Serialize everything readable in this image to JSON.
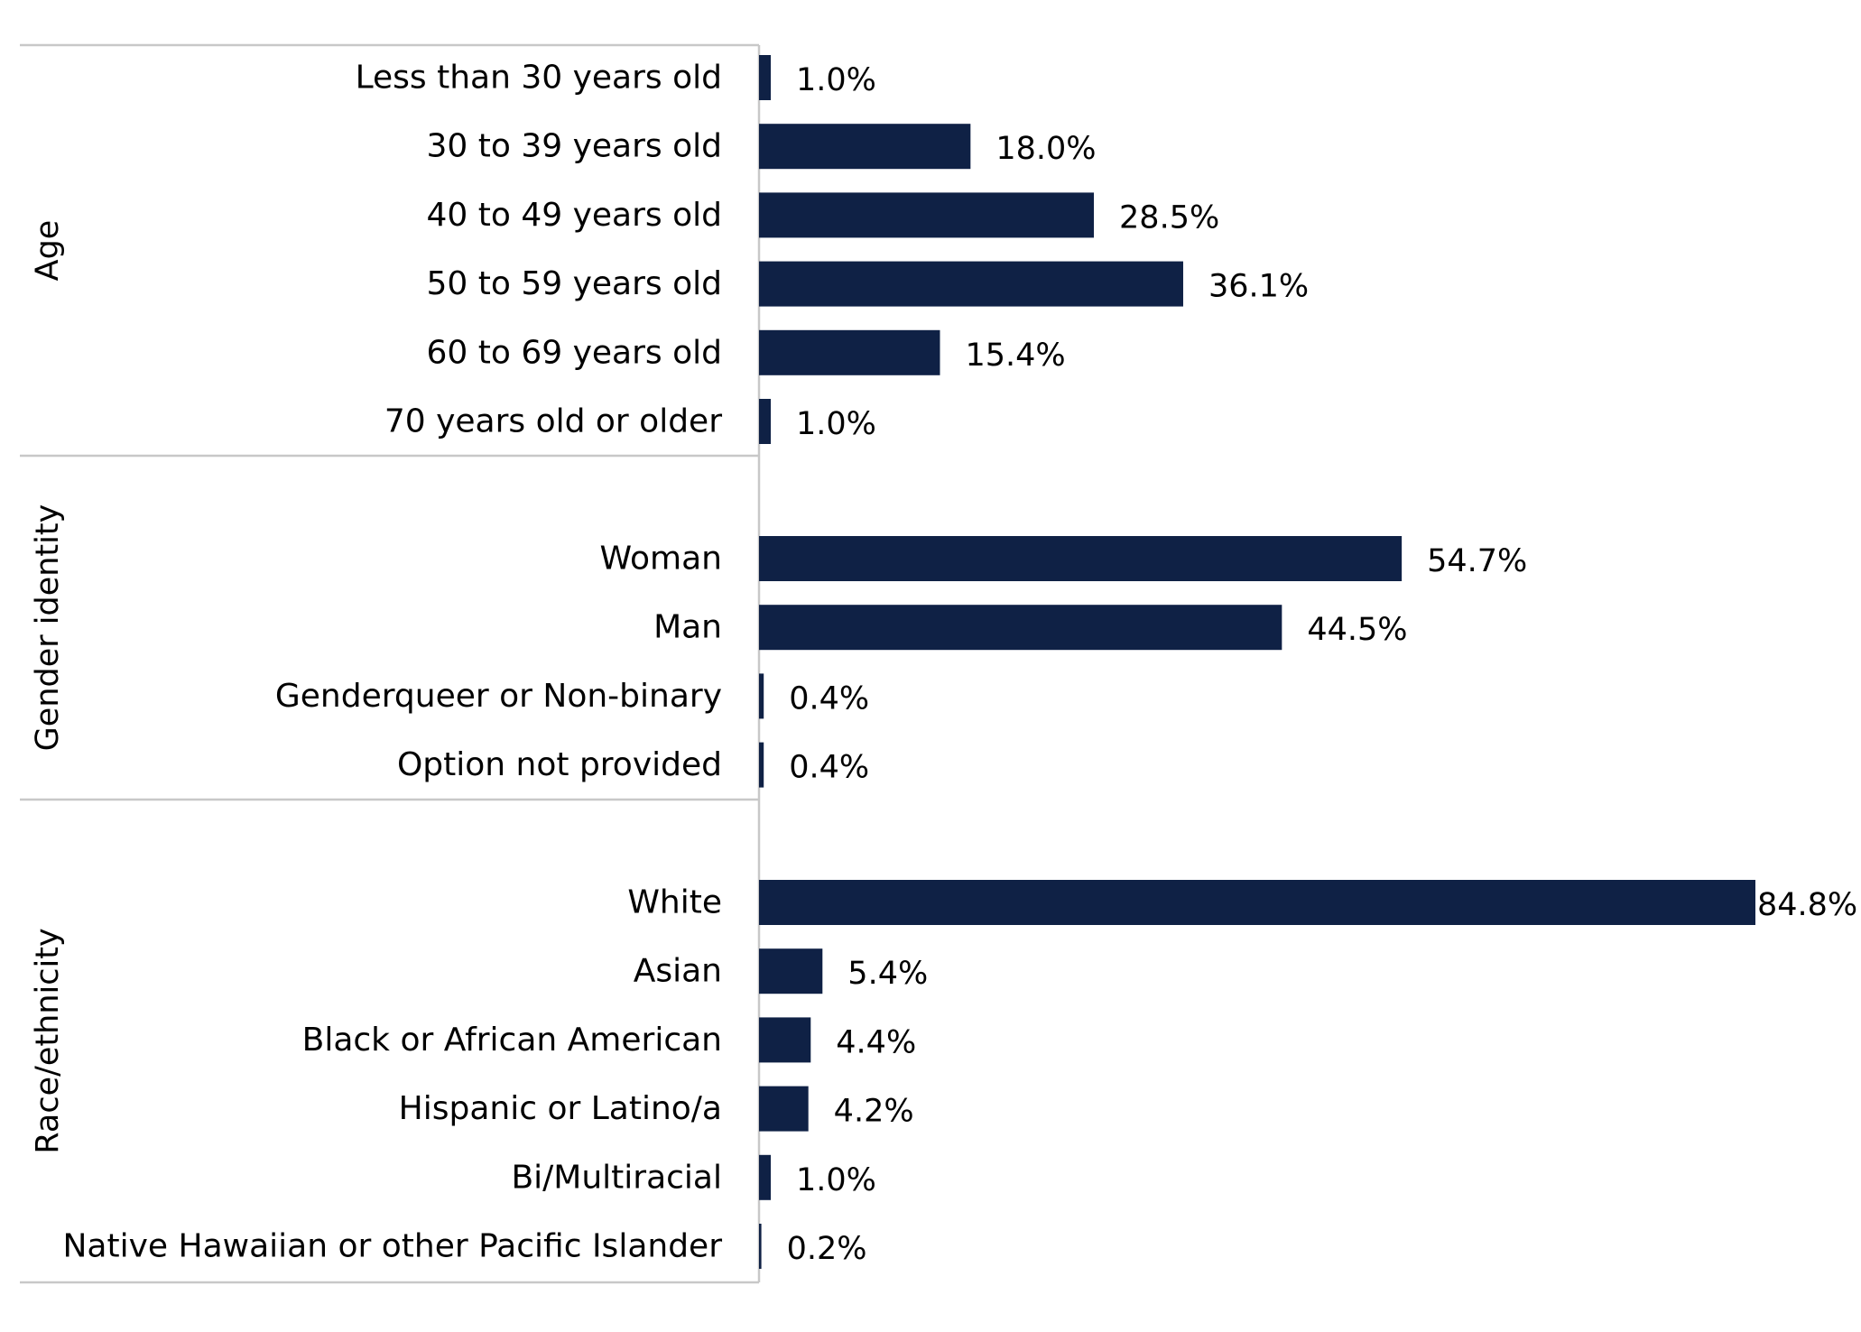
{
  "chart_data": {
    "type": "bar",
    "orientation": "horizontal",
    "title": "",
    "xlabel": "",
    "ylabel": "",
    "xlim": [
      0,
      84.8
    ],
    "grid": false,
    "legend": "none",
    "value_suffix": "%",
    "bar_color": "#0f2145",
    "separator_color": "#c8c8c8",
    "groups": [
      {
        "name": "Age",
        "categories": [
          "Less than 30 years old",
          "30 to 39 years old",
          "40 to 49 years old",
          "50 to 59 years old",
          "60 to 69 years old",
          "70 years old or older"
        ],
        "values": [
          1.0,
          18.0,
          28.5,
          36.1,
          15.4,
          1.0
        ],
        "labels": [
          "1.0%",
          "18.0%",
          "28.5%",
          "36.1%",
          "15.4%",
          "1.0%"
        ]
      },
      {
        "name": "Gender identity",
        "categories": [
          "Woman",
          "Man",
          "Genderqueer or Non-binary",
          "Option not provided"
        ],
        "values": [
          54.7,
          44.5,
          0.4,
          0.4
        ],
        "labels": [
          "54.7%",
          "44.5%",
          "0.4%",
          "0.4%"
        ]
      },
      {
        "name": "Race/ethnicity",
        "categories": [
          "White",
          "Asian",
          "Black or African American",
          "Hispanic or Latino/a",
          "Bi/Multiracial",
          "Native Hawaiian or other Pacific Islander"
        ],
        "values": [
          84.8,
          5.4,
          4.4,
          4.2,
          1.0,
          0.2
        ],
        "labels": [
          "84.8%",
          "5.4%",
          "4.4%",
          "4.2%",
          "1.0%",
          "0.2%"
        ]
      }
    ]
  }
}
